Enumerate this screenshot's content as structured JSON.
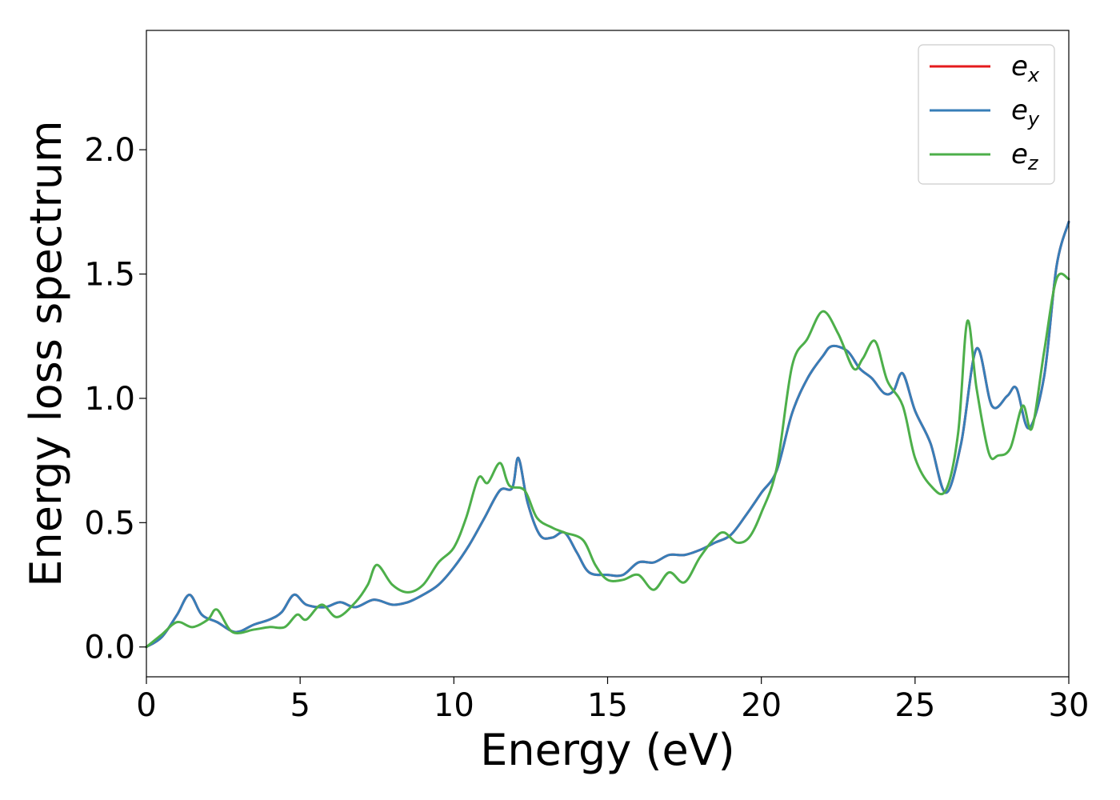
{
  "chart_data": {
    "type": "line",
    "title": "",
    "xlabel": "Energy (eV)",
    "ylabel": "Energy loss spectrum",
    "xlim": [
      0,
      30
    ],
    "ylim": [
      -0.12,
      2.48
    ],
    "xticks": [
      0,
      5,
      10,
      15,
      20,
      25,
      30
    ],
    "xtick_labels": [
      "0",
      "5",
      "10",
      "15",
      "20",
      "25",
      "30"
    ],
    "yticks": [
      0.0,
      0.5,
      1.0,
      1.5,
      2.0
    ],
    "ytick_labels": [
      "0.0",
      "0.5",
      "1.0",
      "1.5",
      "2.0"
    ],
    "grid": false,
    "legend_position": "top-right",
    "series": [
      {
        "name": "e_x",
        "legend_base": "e",
        "legend_sub": "x",
        "color": "#e41a1c",
        "x": [
          0,
          0.5,
          1.0,
          1.4,
          1.8,
          2.3,
          2.9,
          3.5,
          4.0,
          4.4,
          4.8,
          5.2,
          5.8,
          6.3,
          6.8,
          7.4,
          8.0,
          8.5,
          9.0,
          9.5,
          10.0,
          10.5,
          11.0,
          11.5,
          11.9,
          12.1,
          12.4,
          12.8,
          13.2,
          13.6,
          14.0,
          14.4,
          15.0,
          15.5,
          16.0,
          16.5,
          17.0,
          17.5,
          18.0,
          18.5,
          19.0,
          19.5,
          20.0,
          20.5,
          21.0,
          21.5,
          22.0,
          22.3,
          22.8,
          23.2,
          23.6,
          24.0,
          24.3,
          24.6,
          25.0,
          25.5,
          26.0,
          26.5,
          27.0,
          27.5,
          28.0,
          28.3,
          28.7,
          29.2,
          29.6,
          30.0
        ],
        "y": [
          0.0,
          0.04,
          0.13,
          0.21,
          0.13,
          0.1,
          0.06,
          0.09,
          0.11,
          0.14,
          0.21,
          0.17,
          0.16,
          0.18,
          0.16,
          0.19,
          0.17,
          0.18,
          0.21,
          0.25,
          0.32,
          0.41,
          0.52,
          0.63,
          0.64,
          0.76,
          0.58,
          0.45,
          0.44,
          0.46,
          0.38,
          0.3,
          0.29,
          0.29,
          0.34,
          0.34,
          0.37,
          0.37,
          0.39,
          0.42,
          0.45,
          0.53,
          0.62,
          0.71,
          0.94,
          1.08,
          1.17,
          1.21,
          1.19,
          1.12,
          1.08,
          1.02,
          1.03,
          1.1,
          0.95,
          0.82,
          0.62,
          0.82,
          1.2,
          0.97,
          1.01,
          1.04,
          0.88,
          1.09,
          1.53,
          1.71
        ]
      },
      {
        "name": "e_y",
        "legend_base": "e",
        "legend_sub": "y",
        "color": "#377eb8",
        "x": [
          0,
          0.5,
          1.0,
          1.4,
          1.8,
          2.3,
          2.9,
          3.5,
          4.0,
          4.4,
          4.8,
          5.2,
          5.8,
          6.3,
          6.8,
          7.4,
          8.0,
          8.5,
          9.0,
          9.5,
          10.0,
          10.5,
          11.0,
          11.5,
          11.9,
          12.1,
          12.4,
          12.8,
          13.2,
          13.6,
          14.0,
          14.4,
          15.0,
          15.5,
          16.0,
          16.5,
          17.0,
          17.5,
          18.0,
          18.5,
          19.0,
          19.5,
          20.0,
          20.5,
          21.0,
          21.5,
          22.0,
          22.3,
          22.8,
          23.2,
          23.6,
          24.0,
          24.3,
          24.6,
          25.0,
          25.5,
          26.0,
          26.5,
          27.0,
          27.5,
          28.0,
          28.3,
          28.7,
          29.2,
          29.6,
          30.0
        ],
        "y": [
          0.0,
          0.04,
          0.13,
          0.21,
          0.13,
          0.1,
          0.06,
          0.09,
          0.11,
          0.14,
          0.21,
          0.17,
          0.16,
          0.18,
          0.16,
          0.19,
          0.17,
          0.18,
          0.21,
          0.25,
          0.32,
          0.41,
          0.52,
          0.63,
          0.64,
          0.76,
          0.58,
          0.45,
          0.44,
          0.46,
          0.38,
          0.3,
          0.29,
          0.29,
          0.34,
          0.34,
          0.37,
          0.37,
          0.39,
          0.42,
          0.45,
          0.53,
          0.62,
          0.71,
          0.94,
          1.08,
          1.17,
          1.21,
          1.19,
          1.12,
          1.08,
          1.02,
          1.03,
          1.1,
          0.95,
          0.82,
          0.62,
          0.82,
          1.2,
          0.97,
          1.01,
          1.04,
          0.88,
          1.09,
          1.53,
          1.71
        ]
      },
      {
        "name": "e_z",
        "legend_base": "e",
        "legend_sub": "z",
        "color": "#4daf4a",
        "x": [
          0,
          0.5,
          1.0,
          1.5,
          2.0,
          2.3,
          2.8,
          3.5,
          4.0,
          4.5,
          4.9,
          5.2,
          5.7,
          6.2,
          6.8,
          7.2,
          7.5,
          8.0,
          8.5,
          9.0,
          9.5,
          10.0,
          10.4,
          10.8,
          11.1,
          11.5,
          11.8,
          12.3,
          12.7,
          13.2,
          13.6,
          14.2,
          14.6,
          15.0,
          15.5,
          16.0,
          16.5,
          17.0,
          17.5,
          18.0,
          18.5,
          18.8,
          19.2,
          19.6,
          20.0,
          20.5,
          21.0,
          21.5,
          22.0,
          22.5,
          23.0,
          23.3,
          23.7,
          24.1,
          24.6,
          25.0,
          25.5,
          26.0,
          26.4,
          26.7,
          27.0,
          27.4,
          27.7,
          28.1,
          28.5,
          28.8,
          29.2,
          29.6,
          30.0
        ],
        "y": [
          0.0,
          0.05,
          0.1,
          0.08,
          0.11,
          0.15,
          0.06,
          0.07,
          0.08,
          0.08,
          0.13,
          0.11,
          0.17,
          0.12,
          0.18,
          0.25,
          0.33,
          0.25,
          0.22,
          0.25,
          0.34,
          0.4,
          0.52,
          0.68,
          0.66,
          0.74,
          0.65,
          0.63,
          0.52,
          0.48,
          0.46,
          0.43,
          0.33,
          0.27,
          0.27,
          0.29,
          0.23,
          0.3,
          0.26,
          0.36,
          0.44,
          0.46,
          0.42,
          0.44,
          0.54,
          0.72,
          1.13,
          1.24,
          1.35,
          1.26,
          1.12,
          1.16,
          1.23,
          1.07,
          0.97,
          0.76,
          0.65,
          0.63,
          0.86,
          1.31,
          1.04,
          0.78,
          0.77,
          0.8,
          0.97,
          0.88,
          1.19,
          1.48,
          1.48
        ]
      }
    ]
  }
}
